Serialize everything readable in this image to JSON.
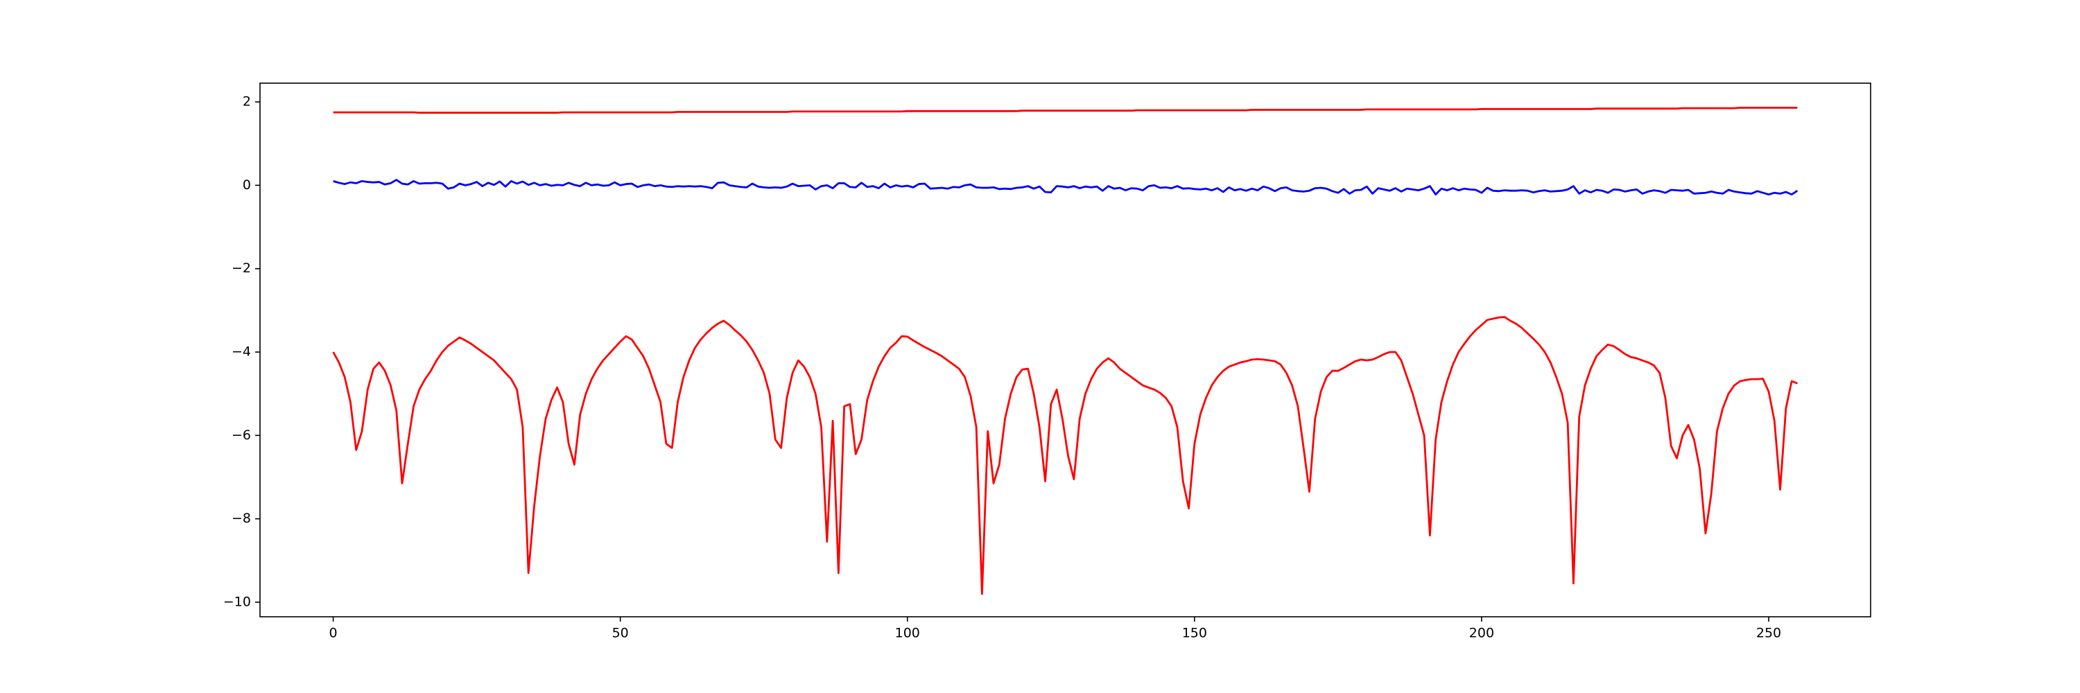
{
  "chart_data": {
    "type": "line",
    "x": [
      0,
      1,
      2,
      3,
      4,
      5,
      6,
      7,
      8,
      9,
      10,
      11,
      12,
      13,
      14,
      15,
      16,
      17,
      18,
      19,
      20,
      21,
      22,
      23,
      24,
      25,
      26,
      27,
      28,
      29,
      30,
      31,
      32,
      33,
      34,
      35,
      36,
      37,
      38,
      39,
      40,
      41,
      42,
      43,
      44,
      45,
      46,
      47,
      48,
      49,
      50,
      51,
      52,
      53,
      54,
      55,
      56,
      57,
      58,
      59,
      60,
      61,
      62,
      63,
      64,
      65,
      66,
      67,
      68,
      69,
      70,
      71,
      72,
      73,
      74,
      75,
      76,
      77,
      78,
      79,
      80,
      81,
      82,
      83,
      84,
      85,
      86,
      87,
      88,
      89,
      90,
      91,
      92,
      93,
      94,
      95,
      96,
      97,
      98,
      99,
      100,
      101,
      102,
      103,
      104,
      105,
      106,
      107,
      108,
      109,
      110,
      111,
      112,
      113,
      114,
      115,
      116,
      117,
      118,
      119,
      120,
      121,
      122,
      123,
      124,
      125,
      126,
      127,
      128,
      129,
      130,
      131,
      132,
      133,
      134,
      135,
      136,
      137,
      138,
      139,
      140,
      141,
      142,
      143,
      144,
      145,
      146,
      147,
      148,
      149,
      150,
      151,
      152,
      153,
      154,
      155,
      156,
      157,
      158,
      159,
      160,
      161,
      162,
      163,
      164,
      165,
      166,
      167,
      168,
      169,
      170,
      171,
      172,
      173,
      174,
      175,
      176,
      177,
      178,
      179,
      180,
      181,
      182,
      183,
      184,
      185,
      186,
      187,
      188,
      189,
      190,
      191,
      192,
      193,
      194,
      195,
      196,
      197,
      198,
      199,
      200,
      201,
      202,
      203,
      204,
      205,
      206,
      207,
      208,
      209,
      210,
      211,
      212,
      213,
      214,
      215,
      216,
      217,
      218,
      219,
      220,
      221,
      222,
      223,
      224,
      225,
      226,
      227,
      228,
      229,
      230,
      231,
      232,
      233,
      234,
      235,
      236,
      237,
      238,
      239,
      240,
      241,
      242,
      243,
      244,
      245,
      246,
      247,
      248,
      249,
      250,
      251,
      252,
      253,
      254,
      255
    ],
    "series": [
      {
        "color": "#ff0000",
        "values": [
          1.75,
          1.75,
          1.75,
          1.75,
          1.75,
          1.75,
          1.75,
          1.75,
          1.75,
          1.75,
          1.75,
          1.75,
          1.75,
          1.75,
          1.75,
          1.74,
          1.74,
          1.74,
          1.74,
          1.74,
          1.74,
          1.74,
          1.74,
          1.74,
          1.74,
          1.74,
          1.74,
          1.74,
          1.74,
          1.74,
          1.74,
          1.74,
          1.74,
          1.74,
          1.74,
          1.74,
          1.74,
          1.74,
          1.74,
          1.74,
          1.75,
          1.75,
          1.75,
          1.75,
          1.75,
          1.75,
          1.75,
          1.75,
          1.75,
          1.75,
          1.75,
          1.75,
          1.75,
          1.75,
          1.75,
          1.75,
          1.75,
          1.75,
          1.75,
          1.75,
          1.76,
          1.76,
          1.76,
          1.76,
          1.76,
          1.76,
          1.76,
          1.76,
          1.76,
          1.76,
          1.76,
          1.76,
          1.76,
          1.76,
          1.76,
          1.76,
          1.76,
          1.76,
          1.76,
          1.76,
          1.77,
          1.77,
          1.77,
          1.77,
          1.77,
          1.77,
          1.77,
          1.77,
          1.77,
          1.77,
          1.77,
          1.77,
          1.77,
          1.77,
          1.77,
          1.77,
          1.77,
          1.77,
          1.77,
          1.77,
          1.78,
          1.78,
          1.78,
          1.78,
          1.78,
          1.78,
          1.78,
          1.78,
          1.78,
          1.78,
          1.78,
          1.78,
          1.78,
          1.78,
          1.78,
          1.78,
          1.78,
          1.78,
          1.78,
          1.78,
          1.79,
          1.79,
          1.79,
          1.79,
          1.79,
          1.79,
          1.79,
          1.79,
          1.79,
          1.79,
          1.79,
          1.79,
          1.79,
          1.79,
          1.79,
          1.79,
          1.79,
          1.79,
          1.79,
          1.79,
          1.8,
          1.8,
          1.8,
          1.8,
          1.8,
          1.8,
          1.8,
          1.8,
          1.8,
          1.8,
          1.8,
          1.8,
          1.8,
          1.8,
          1.8,
          1.8,
          1.8,
          1.8,
          1.8,
          1.8,
          1.81,
          1.81,
          1.81,
          1.81,
          1.81,
          1.81,
          1.81,
          1.81,
          1.81,
          1.81,
          1.81,
          1.81,
          1.81,
          1.81,
          1.81,
          1.81,
          1.81,
          1.81,
          1.81,
          1.81,
          1.82,
          1.82,
          1.82,
          1.82,
          1.82,
          1.82,
          1.82,
          1.82,
          1.82,
          1.82,
          1.82,
          1.82,
          1.82,
          1.82,
          1.82,
          1.82,
          1.82,
          1.82,
          1.82,
          1.82,
          1.83,
          1.83,
          1.83,
          1.83,
          1.83,
          1.83,
          1.83,
          1.83,
          1.83,
          1.83,
          1.83,
          1.83,
          1.83,
          1.83,
          1.83,
          1.83,
          1.83,
          1.83,
          1.83,
          1.83,
          1.84,
          1.84,
          1.84,
          1.84,
          1.84,
          1.84,
          1.84,
          1.84,
          1.84,
          1.84,
          1.84,
          1.84,
          1.84,
          1.84,
          1.84,
          1.85,
          1.85,
          1.85,
          1.85,
          1.85,
          1.85,
          1.85,
          1.85,
          1.85,
          1.85,
          1.86,
          1.86,
          1.86,
          1.86,
          1.86,
          1.86,
          1.86,
          1.86,
          1.86,
          1.86,
          1.86
        ]
      },
      {
        "color": "#0000ff",
        "values": [
          0.1,
          0.06,
          0.03,
          0.07,
          0.05,
          0.1,
          0.08,
          0.07,
          0.08,
          0.02,
          0.05,
          0.13,
          0.04,
          0.02,
          0.1,
          0.04,
          0.05,
          0.05,
          0.06,
          0.04,
          -0.08,
          -0.05,
          0.04,
          0.0,
          0.03,
          0.08,
          -0.02,
          0.06,
          0.01,
          0.09,
          -0.03,
          0.1,
          0.04,
          0.09,
          0.01,
          0.06,
          0.0,
          0.03,
          -0.01,
          0.01,
          0.0,
          0.06,
          0.01,
          -0.02,
          0.06,
          0.0,
          0.02,
          -0.01,
          0.0,
          0.07,
          0.0,
          0.03,
          0.04,
          -0.04,
          0.0,
          0.02,
          -0.02,
          0.0,
          -0.03,
          -0.04,
          -0.02,
          -0.03,
          -0.02,
          -0.03,
          -0.02,
          -0.04,
          -0.07,
          0.06,
          0.07,
          0.0,
          -0.02,
          -0.04,
          -0.05,
          0.04,
          -0.03,
          -0.05,
          -0.06,
          -0.05,
          -0.06,
          -0.03,
          0.04,
          -0.02,
          -0.01,
          0.0,
          -0.1,
          -0.02,
          0.0,
          -0.07,
          0.05,
          0.05,
          -0.04,
          -0.05,
          0.06,
          -0.04,
          -0.02,
          -0.07,
          0.04,
          -0.05,
          0.0,
          -0.03,
          -0.01,
          -0.05,
          0.03,
          0.04,
          -0.08,
          -0.07,
          -0.06,
          -0.08,
          -0.04,
          -0.05,
          0.0,
          0.02,
          -0.05,
          -0.06,
          -0.06,
          -0.05,
          -0.09,
          -0.08,
          -0.09,
          -0.06,
          -0.05,
          -0.02,
          -0.08,
          -0.03,
          -0.16,
          -0.17,
          -0.02,
          -0.03,
          -0.05,
          -0.02,
          -0.07,
          -0.03,
          -0.05,
          -0.03,
          -0.13,
          -0.02,
          -0.08,
          -0.06,
          -0.12,
          -0.07,
          -0.08,
          -0.12,
          -0.02,
          0.0,
          -0.06,
          -0.05,
          -0.07,
          -0.02,
          -0.08,
          -0.07,
          -0.09,
          -0.1,
          -0.08,
          -0.12,
          -0.07,
          -0.16,
          -0.05,
          -0.12,
          -0.09,
          -0.13,
          -0.08,
          -0.12,
          -0.03,
          -0.07,
          -0.14,
          -0.07,
          -0.05,
          -0.12,
          -0.14,
          -0.15,
          -0.13,
          -0.07,
          -0.06,
          -0.08,
          -0.14,
          -0.18,
          -0.09,
          -0.2,
          -0.12,
          -0.11,
          -0.03,
          -0.2,
          -0.07,
          -0.1,
          -0.13,
          -0.07,
          -0.15,
          -0.08,
          -0.1,
          -0.12,
          -0.08,
          -0.02,
          -0.22,
          -0.08,
          -0.12,
          -0.07,
          -0.12,
          -0.08,
          -0.1,
          -0.11,
          -0.18,
          -0.06,
          -0.13,
          -0.14,
          -0.12,
          -0.13,
          -0.13,
          -0.12,
          -0.13,
          -0.17,
          -0.14,
          -0.12,
          -0.15,
          -0.14,
          -0.13,
          -0.1,
          -0.02,
          -0.2,
          -0.12,
          -0.17,
          -0.11,
          -0.13,
          -0.18,
          -0.1,
          -0.11,
          -0.15,
          -0.12,
          -0.1,
          -0.2,
          -0.15,
          -0.12,
          -0.14,
          -0.18,
          -0.11,
          -0.12,
          -0.13,
          -0.11,
          -0.2,
          -0.19,
          -0.18,
          -0.15,
          -0.18,
          -0.2,
          -0.11,
          -0.15,
          -0.17,
          -0.19,
          -0.2,
          -0.14,
          -0.18,
          -0.22,
          -0.18,
          -0.2,
          -0.16,
          -0.22,
          -0.13
        ]
      },
      {
        "color": "#ff0000",
        "values": [
          -4.0,
          -4.25,
          -4.6,
          -5.2,
          -6.35,
          -5.9,
          -4.9,
          -4.4,
          -4.25,
          -4.45,
          -4.8,
          -5.4,
          -7.15,
          -6.2,
          -5.3,
          -4.9,
          -4.65,
          -4.45,
          -4.2,
          -4.0,
          -3.85,
          -3.75,
          -3.65,
          -3.72,
          -3.8,
          -3.9,
          -4.0,
          -4.1,
          -4.2,
          -4.35,
          -4.5,
          -4.65,
          -4.9,
          -5.8,
          -9.3,
          -7.7,
          -6.5,
          -5.6,
          -5.15,
          -4.85,
          -5.2,
          -6.2,
          -6.7,
          -5.5,
          -5.0,
          -4.65,
          -4.4,
          -4.2,
          -4.05,
          -3.9,
          -3.75,
          -3.62,
          -3.7,
          -3.9,
          -4.1,
          -4.4,
          -4.8,
          -5.2,
          -6.2,
          -6.3,
          -5.2,
          -4.6,
          -4.2,
          -3.9,
          -3.7,
          -3.55,
          -3.42,
          -3.32,
          -3.25,
          -3.35,
          -3.48,
          -3.6,
          -3.75,
          -3.95,
          -4.2,
          -4.5,
          -5.0,
          -6.1,
          -6.3,
          -5.1,
          -4.5,
          -4.2,
          -4.35,
          -4.6,
          -5.0,
          -5.8,
          -8.55,
          -5.65,
          -9.3,
          -5.3,
          -5.25,
          -6.45,
          -6.1,
          -5.15,
          -4.7,
          -4.35,
          -4.1,
          -3.9,
          -3.78,
          -3.62,
          -3.63,
          -3.72,
          -3.8,
          -3.88,
          -3.95,
          -4.02,
          -4.1,
          -4.2,
          -4.3,
          -4.4,
          -4.6,
          -5.05,
          -5.8,
          -9.8,
          -5.9,
          -7.15,
          -6.7,
          -5.6,
          -5.0,
          -4.6,
          -4.42,
          -4.4,
          -5.0,
          -5.8,
          -7.1,
          -5.25,
          -4.9,
          -5.6,
          -6.5,
          -7.05,
          -5.6,
          -5.0,
          -4.65,
          -4.4,
          -4.25,
          -4.15,
          -4.25,
          -4.4,
          -4.5,
          -4.6,
          -4.7,
          -4.8,
          -4.85,
          -4.9,
          -4.98,
          -5.1,
          -5.3,
          -5.8,
          -7.1,
          -7.75,
          -6.2,
          -5.5,
          -5.1,
          -4.8,
          -4.6,
          -4.45,
          -4.35,
          -4.3,
          -4.25,
          -4.22,
          -4.18,
          -4.17,
          -4.18,
          -4.2,
          -4.22,
          -4.3,
          -4.5,
          -4.8,
          -5.3,
          -6.3,
          -7.35,
          -5.6,
          -4.95,
          -4.6,
          -4.45,
          -4.45,
          -4.38,
          -4.3,
          -4.22,
          -4.18,
          -4.2,
          -4.18,
          -4.12,
          -4.05,
          -4.0,
          -4.0,
          -4.2,
          -4.6,
          -5.0,
          -5.5,
          -6.0,
          -8.4,
          -6.1,
          -5.2,
          -4.7,
          -4.3,
          -4.0,
          -3.8,
          -3.62,
          -3.47,
          -3.35,
          -3.23,
          -3.2,
          -3.17,
          -3.16,
          -3.25,
          -3.32,
          -3.42,
          -3.55,
          -3.68,
          -3.82,
          -4.0,
          -4.25,
          -4.6,
          -5.0,
          -5.7,
          -9.55,
          -5.55,
          -4.8,
          -4.4,
          -4.1,
          -3.95,
          -3.82,
          -3.86,
          -3.95,
          -4.05,
          -4.12,
          -4.15,
          -4.2,
          -4.25,
          -4.32,
          -4.5,
          -5.1,
          -6.25,
          -6.55,
          -6.0,
          -5.75,
          -6.1,
          -6.8,
          -8.35,
          -7.4,
          -5.9,
          -5.35,
          -5.0,
          -4.8,
          -4.7,
          -4.67,
          -4.65,
          -4.65,
          -4.64,
          -4.95,
          -5.65,
          -7.3,
          -5.35,
          -4.7,
          -4.75
        ]
      }
    ],
    "xlim": [
      -12.75,
      267.75
    ],
    "xticks": [
      0,
      50,
      100,
      150,
      200,
      250
    ],
    "ylim": [
      -10.35,
      2.45
    ],
    "yticks": [
      {
        "value": -10,
        "label": "−10"
      },
      {
        "value": -8,
        "label": "−8"
      },
      {
        "value": -6,
        "label": "−6"
      },
      {
        "value": -4,
        "label": "−4"
      },
      {
        "value": -2,
        "label": "−2"
      },
      0,
      2
    ]
  }
}
